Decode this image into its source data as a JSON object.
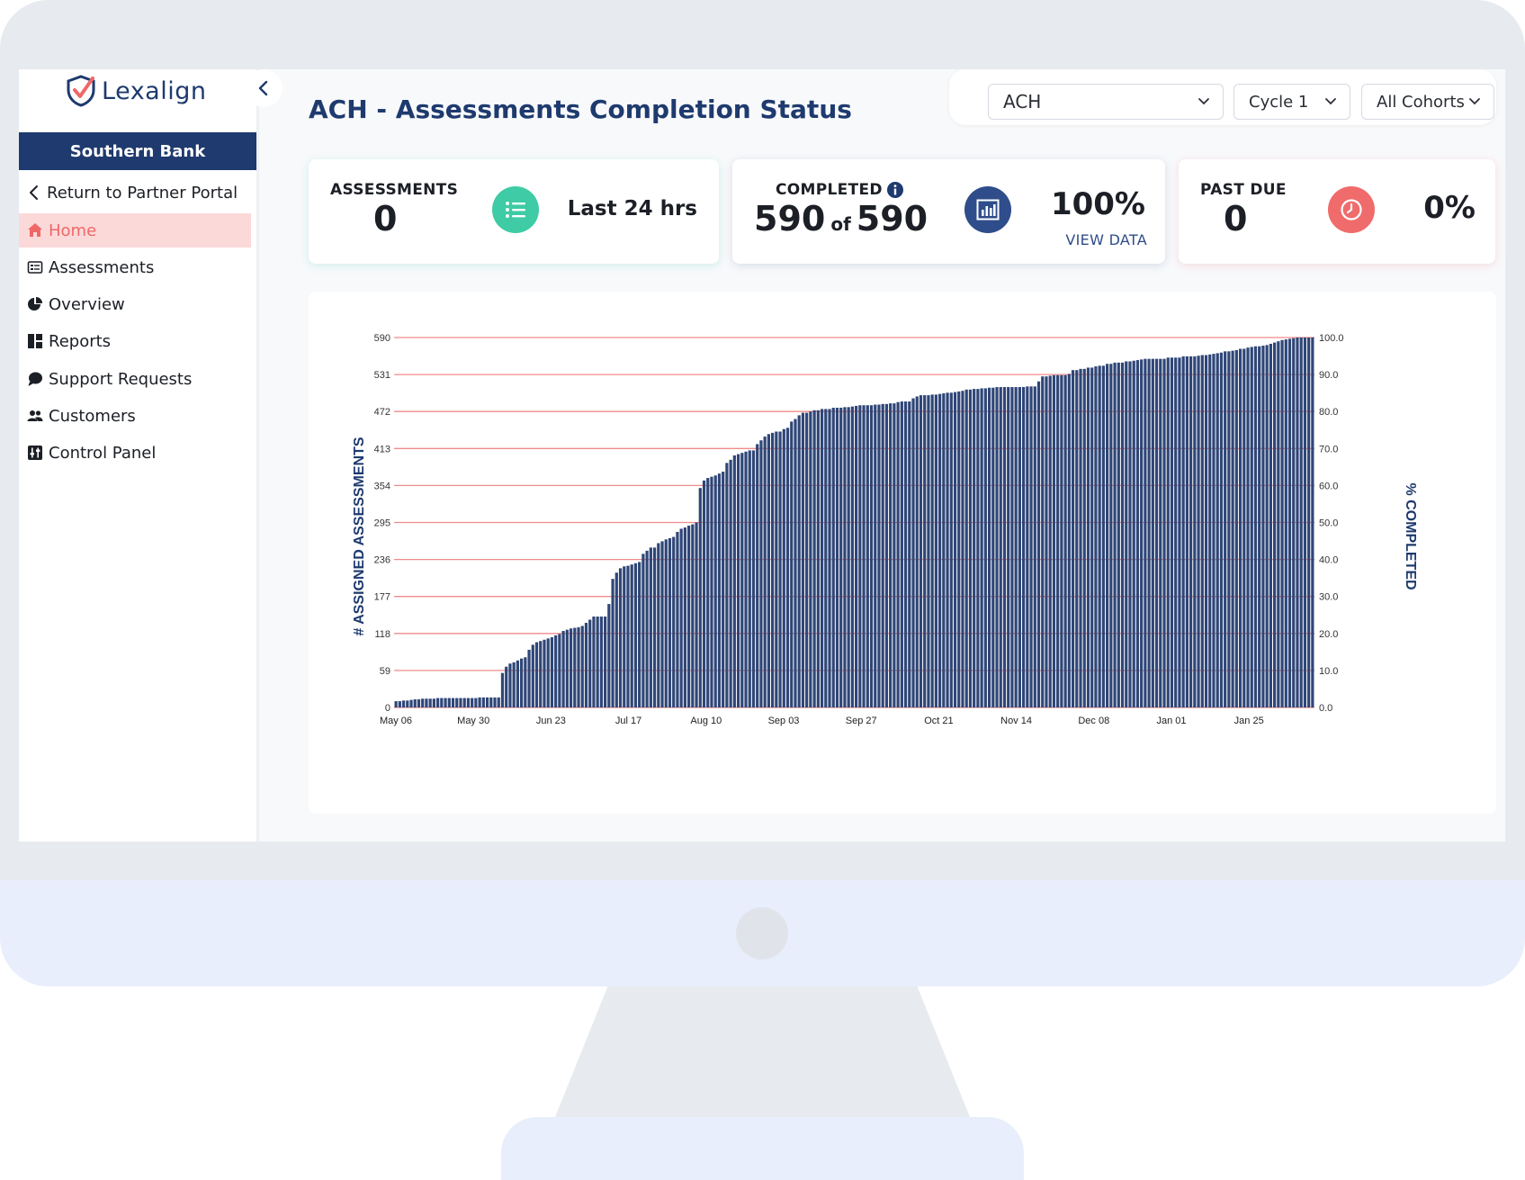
{
  "app": {
    "logo_text": "Lexalign",
    "client_name": "Southern Bank"
  },
  "sidebar": {
    "return_label": "Return to Partner Portal",
    "items": [
      {
        "label": "Home",
        "icon": "home-icon",
        "active": true
      },
      {
        "label": "Assessments",
        "icon": "assessments-icon"
      },
      {
        "label": "Overview",
        "icon": "pie-chart-icon"
      },
      {
        "label": "Reports",
        "icon": "reports-icon"
      },
      {
        "label": "Support Requests",
        "icon": "chat-bubble-icon"
      },
      {
        "label": "Customers",
        "icon": "users-icon"
      },
      {
        "label": "Control Panel",
        "icon": "sliders-icon"
      }
    ]
  },
  "header": {
    "title": "ACH - Assessments Completion Status"
  },
  "filters": {
    "product": "ACH",
    "cycle": "Cycle 1",
    "cohort": "All Cohorts"
  },
  "cards": {
    "assessments": {
      "label": "ASSESSMENTS",
      "value": "0",
      "period": "Last 24 hrs",
      "icon": "list-icon",
      "color": "#3ecba5"
    },
    "completed": {
      "label": "COMPLETED",
      "value": "590",
      "of": "of",
      "total": "590",
      "percent": "100%",
      "link": "VIEW DATA",
      "icon": "bar-chart-icon",
      "color": "#2f4d8a"
    },
    "past_due": {
      "label": "PAST DUE",
      "value": "0",
      "percent": "0%",
      "icon": "clock-icon",
      "color": "#f06b6b"
    }
  },
  "colors": {
    "primary": "#1e3a6e",
    "bar": "#2f4677",
    "gridline": "#f08b8b",
    "active_bg": "#fcd9d9",
    "active_text": "#ef6868"
  },
  "chart_data": {
    "type": "bar",
    "ylabel": "# ASSIGNED ASSESSMENTS",
    "y2label": "% COMPLETED",
    "ylim": [
      0,
      590
    ],
    "y2lim": [
      0,
      100
    ],
    "y_ticks": [
      "0",
      "59",
      "118",
      "177",
      "236",
      "295",
      "354",
      "413",
      "472",
      "531",
      "590"
    ],
    "y2_ticks": [
      "0.0",
      "10.0",
      "20.0",
      "30.0",
      "40.0",
      "50.0",
      "60.0",
      "70.0",
      "80.0",
      "90.0",
      "100.0"
    ],
    "x_ticks": [
      "May 06",
      "May 30",
      "Jun 23",
      "Jul 17",
      "Aug 10",
      "Sep 03",
      "Sep 27",
      "Oct 21",
      "Nov 14",
      "Dec 08",
      "Jan 01",
      "Jan 25"
    ],
    "grid": true,
    "series": [
      {
        "values": [
          10,
          10,
          11,
          11,
          12,
          13,
          13,
          14,
          14,
          14,
          14,
          15,
          15,
          15,
          15,
          15,
          15,
          15,
          15,
          15,
          15,
          15,
          16,
          16,
          16,
          16,
          16,
          16,
          55,
          65,
          70,
          72,
          75,
          78,
          80,
          92,
          100,
          104,
          106,
          108,
          110,
          112,
          115,
          117,
          122,
          124,
          126,
          127,
          128,
          130,
          135,
          140,
          145,
          145,
          145,
          145,
          165,
          205,
          215,
          222,
          225,
          226,
          228,
          230,
          232,
          245,
          250,
          255,
          255,
          262,
          265,
          268,
          270,
          272,
          280,
          285,
          287,
          290,
          292,
          295,
          350,
          362,
          366,
          368,
          370,
          373,
          376,
          390,
          395,
          402,
          404,
          406,
          408,
          410,
          410,
          420,
          426,
          432,
          436,
          438,
          440,
          440,
          444,
          446,
          456,
          460,
          466,
          470,
          470,
          472,
          474,
          474,
          476,
          476,
          476,
          478,
          478,
          478,
          479,
          479,
          480,
          481,
          482,
          482,
          482,
          482,
          483,
          483,
          484,
          484,
          485,
          485,
          487,
          488,
          488,
          488,
          493,
          496,
          498,
          498,
          498,
          499,
          499,
          500,
          501,
          502,
          502,
          503,
          504,
          505,
          507,
          507,
          508,
          508,
          509,
          509,
          510,
          510,
          511,
          511,
          511,
          511,
          511,
          511,
          511,
          511,
          512,
          512,
          512,
          520,
          528,
          528,
          529,
          530,
          530,
          530,
          530,
          532,
          538,
          538,
          540,
          540,
          542,
          542,
          544,
          545,
          545,
          548,
          548,
          550,
          550,
          550,
          552,
          552,
          553,
          554,
          555,
          556,
          556,
          556,
          556,
          556,
          556,
          558,
          558,
          558,
          558,
          560,
          560,
          560,
          560,
          561,
          562,
          562,
          563,
          564,
          565,
          566,
          568,
          568,
          569,
          570,
          572,
          572,
          574,
          575,
          576,
          576,
          577,
          578,
          580,
          582,
          584,
          586,
          587,
          588,
          589,
          590,
          590,
          590,
          590,
          590
        ]
      }
    ]
  }
}
